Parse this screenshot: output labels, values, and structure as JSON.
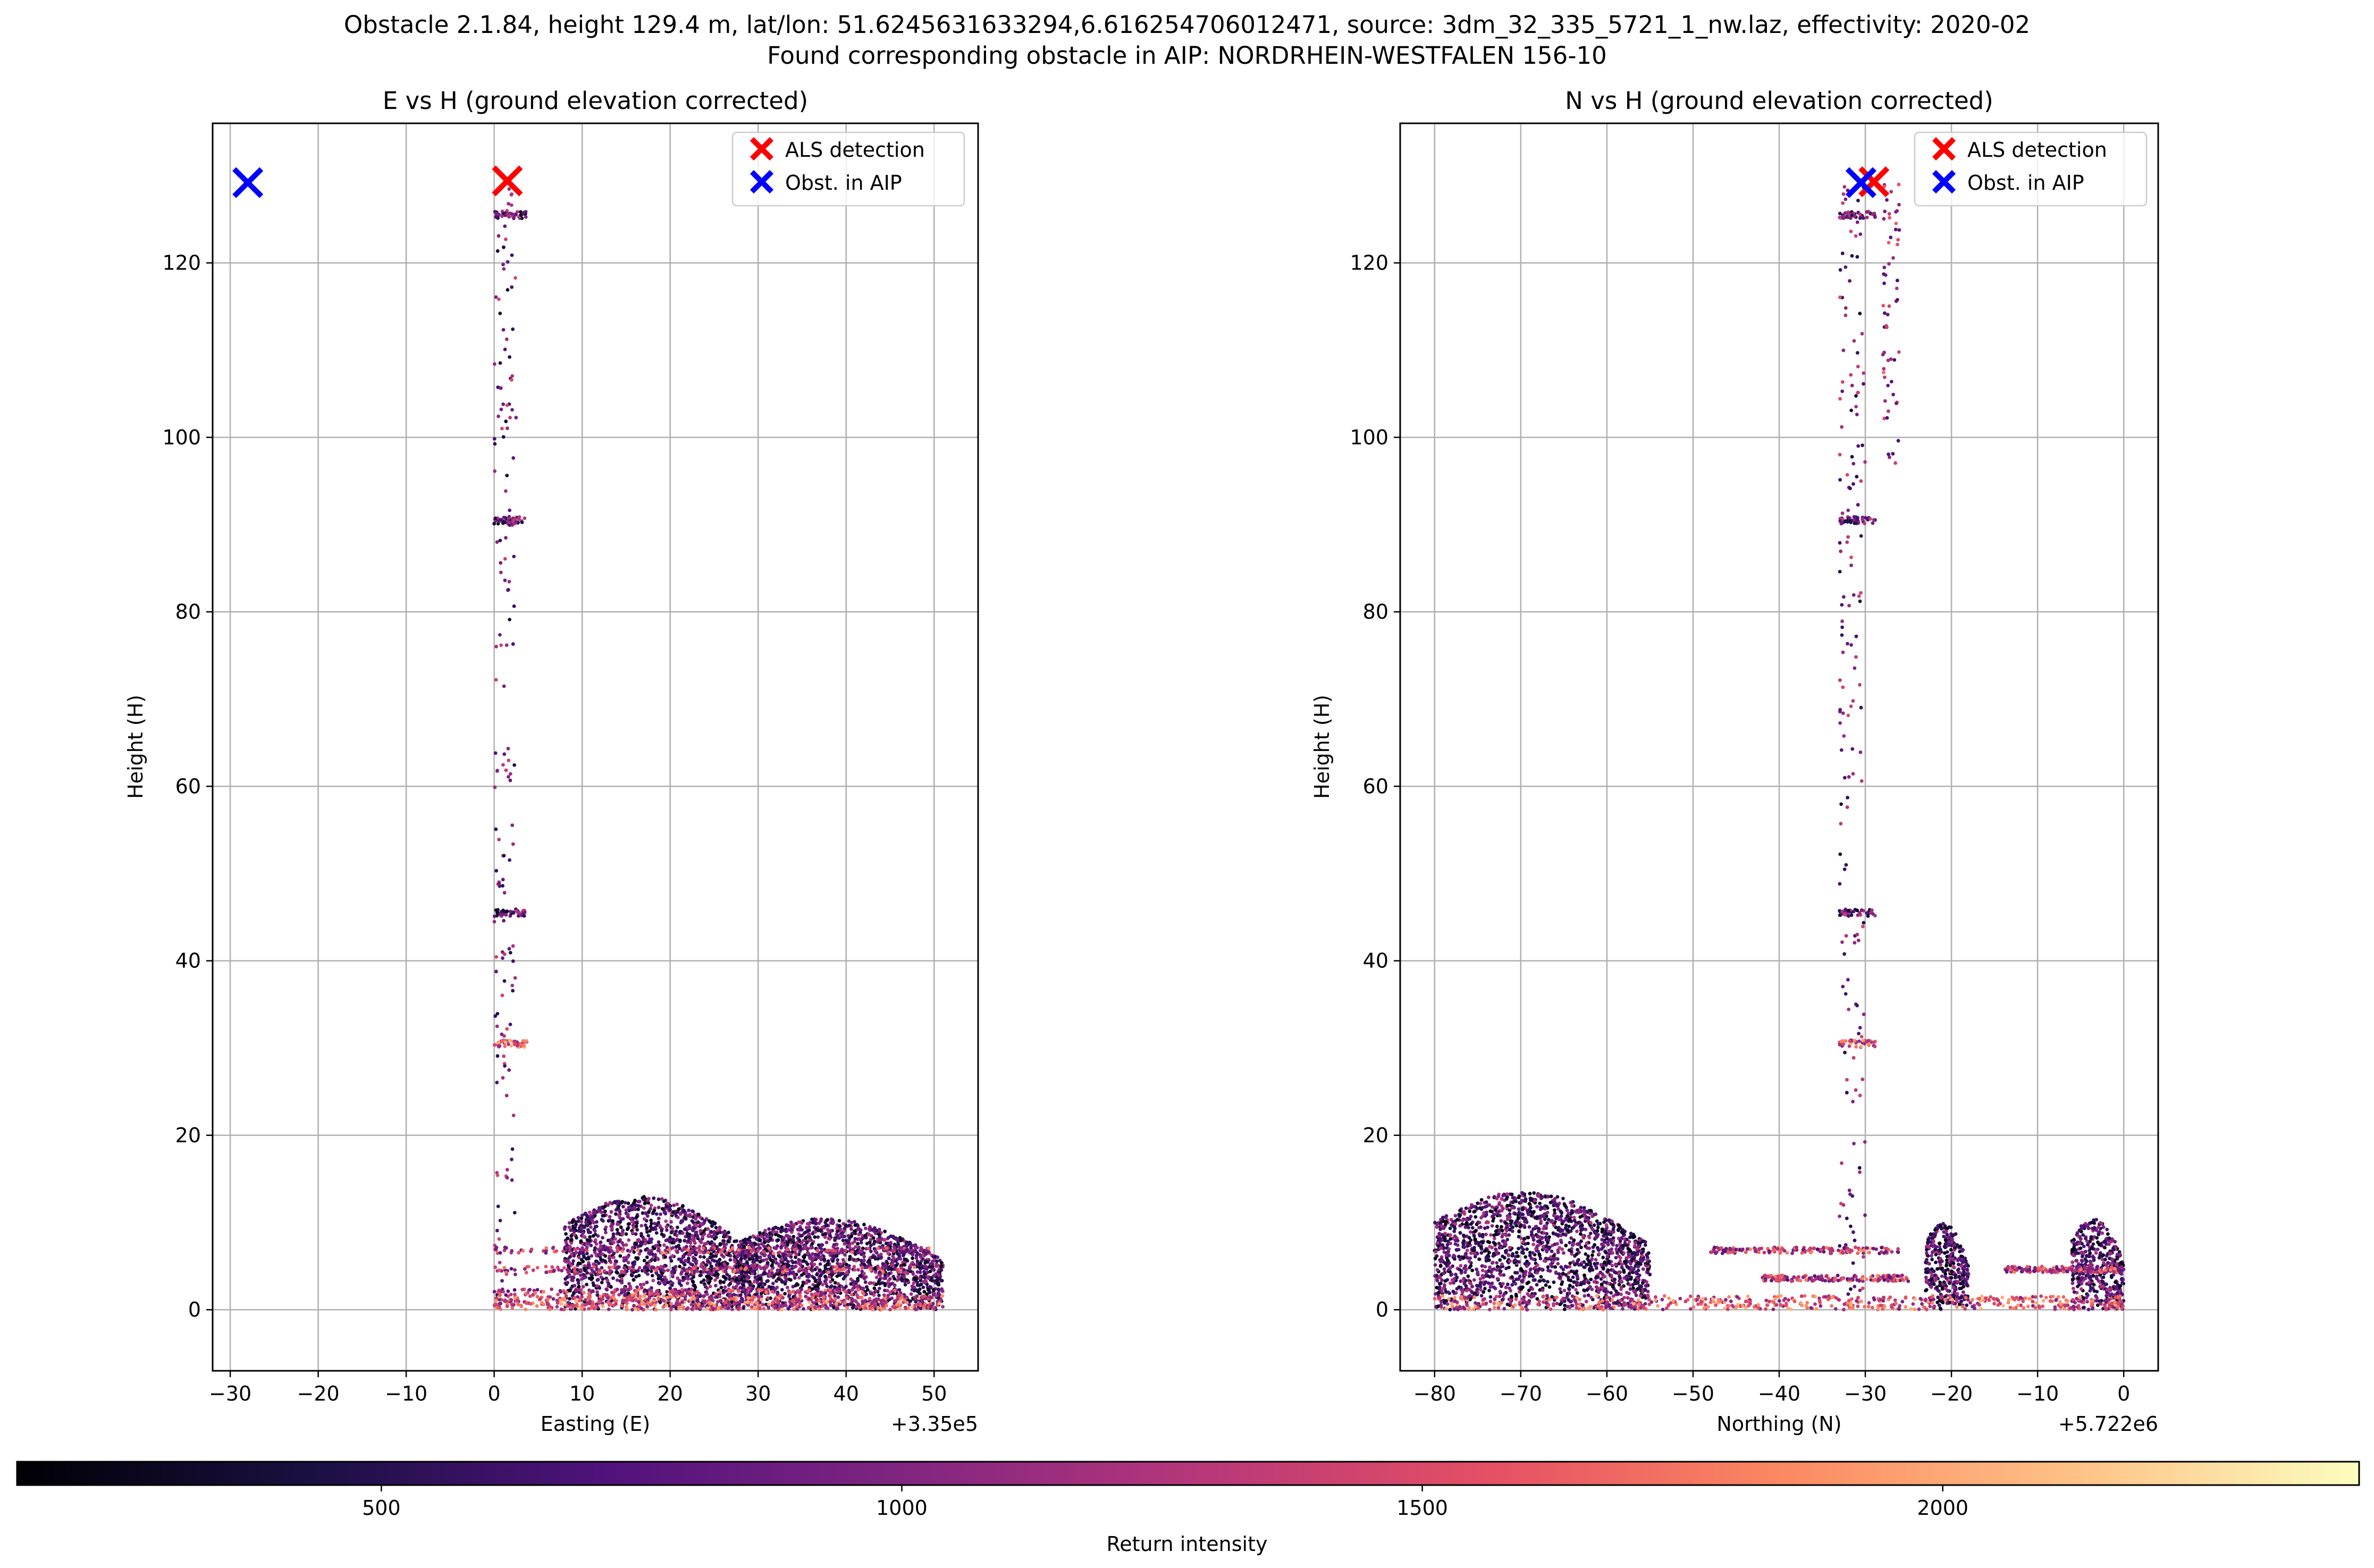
{
  "figure": {
    "title_line1": "Obstacle 2.1.84, height 129.4 m, lat/lon: 51.6245631633294,6.616254706012471, source: 3dm_32_335_5721_1_nw.laz, effectivity: 2020-02",
    "title_line2": "Found corresponding obstacle in AIP: NORDRHEIN-WESTFALEN 156-10"
  },
  "colors": {
    "als_marker": "#ff0000",
    "aip_marker": "#0000ff",
    "grid": "#b0b0b0",
    "colormap": "magma"
  },
  "colorbar": {
    "label": "Return intensity",
    "range": [
      150,
      2400
    ],
    "ticks": [
      "500",
      "1000",
      "1500",
      "2000"
    ],
    "tick_values": [
      500,
      1000,
      1500,
      2000
    ]
  },
  "chart_data": [
    {
      "type": "scatter",
      "title": "E vs H (ground elevation corrected)",
      "xlabel": "Easting (E)",
      "ylabel": "Height (H)",
      "x_offset_label": "+3.35e5",
      "xlim": [
        -32,
        55
      ],
      "ylim": [
        -7,
        136
      ],
      "xticks": [
        "−30",
        "−20",
        "−10",
        "0",
        "10",
        "20",
        "30",
        "40",
        "50"
      ],
      "xtick_values": [
        -30,
        -20,
        -10,
        0,
        10,
        20,
        30,
        40,
        50
      ],
      "yticks": [
        "0",
        "20",
        "40",
        "60",
        "80",
        "100",
        "120"
      ],
      "ytick_values": [
        0,
        20,
        40,
        60,
        80,
        100,
        120
      ],
      "grid": true,
      "legend": {
        "placement": "upper right",
        "entries": [
          {
            "label": "ALS detection",
            "color": "#ff0000"
          },
          {
            "label": "Obst. in AIP",
            "color": "#0000ff"
          }
        ]
      },
      "markers": [
        {
          "name": "ALS detection",
          "x": 1.5,
          "y": 129.4
        },
        {
          "name": "Obst. in AIP",
          "x": -28,
          "y": 129.2
        }
      ],
      "point_cloud": {
        "tower_x_range": [
          0,
          2.5
        ],
        "tower_height_range": [
          0,
          129
        ],
        "platform_heights": [
          30.5,
          45.5,
          90.5,
          125.5
        ],
        "vegetation_blocks": [
          {
            "x": [
              8,
              29
            ],
            "h": [
              0,
              13
            ]
          },
          {
            "x": [
              28,
              51
            ],
            "h": [
              0,
              10.5
            ]
          }
        ],
        "ground_x_range": [
          0,
          51
        ],
        "horizontal_bands": [
          {
            "x": [
              0,
              50
            ],
            "h": 6.8
          },
          {
            "x": [
              0,
              48
            ],
            "h": 4.6
          },
          {
            "x": [
              0,
              46
            ],
            "h": 2.0
          }
        ]
      }
    },
    {
      "type": "scatter",
      "title": "N vs H (ground elevation corrected)",
      "xlabel": "Northing (N)",
      "ylabel": "Height (H)",
      "x_offset_label": "+5.722e6",
      "xlim": [
        -84,
        4
      ],
      "ylim": [
        -7,
        136
      ],
      "xticks": [
        "−80",
        "−70",
        "−60",
        "−50",
        "−40",
        "−30",
        "−20",
        "−10",
        "0"
      ],
      "xtick_values": [
        -80,
        -70,
        -60,
        -50,
        -40,
        -30,
        -20,
        -10,
        0
      ],
      "yticks": [
        "0",
        "20",
        "40",
        "60",
        "80",
        "100",
        "120"
      ],
      "ytick_values": [
        0,
        20,
        40,
        60,
        80,
        100,
        120
      ],
      "grid": true,
      "legend": {
        "placement": "upper right",
        "entries": [
          {
            "label": "ALS detection",
            "color": "#ff0000"
          },
          {
            "label": "Obst. in AIP",
            "color": "#0000ff"
          }
        ]
      },
      "markers": [
        {
          "name": "ALS detection",
          "x": -29,
          "y": 129.3
        },
        {
          "name": "Obst. in AIP",
          "x": -30.5,
          "y": 129.2
        }
      ],
      "point_cloud": {
        "tower_x_range": [
          -33,
          -30
        ],
        "tower_height_range": [
          0,
          129
        ],
        "wing_x_range": [
          -28,
          -26
        ],
        "wing_height_range": [
          97,
          129
        ],
        "platform_heights": [
          30.5,
          45.5,
          90.5,
          125.5
        ],
        "vegetation_blocks": [
          {
            "x": [
              -80,
              -55
            ],
            "h": [
              0,
              13.5
            ]
          },
          {
            "x": [
              -23,
              -18
            ],
            "h": [
              0,
              10
            ]
          },
          {
            "x": [
              -6,
              0
            ],
            "h": [
              0,
              10.5
            ]
          }
        ],
        "ground_x_range": [
          -80,
          0
        ],
        "horizontal_bands": [
          {
            "x": [
              -48,
              -26
            ],
            "h": 6.8
          },
          {
            "x": [
              -42,
              -25
            ],
            "h": 3.6
          },
          {
            "x": [
              -14,
              0
            ],
            "h": 4.6
          }
        ]
      }
    }
  ]
}
